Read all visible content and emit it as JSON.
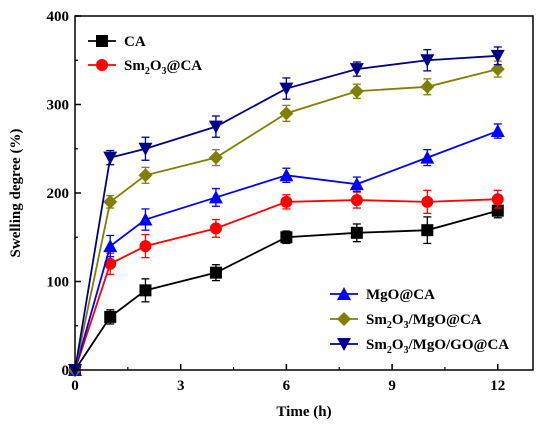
{
  "chart_data": {
    "type": "line",
    "xlabel": "Time (h)",
    "ylabel": "Swelling degree (%)",
    "xlim": [
      0,
      13
    ],
    "ylim": [
      0,
      400
    ],
    "xticks": [
      0,
      3,
      6,
      9,
      12
    ],
    "yticks": [
      0,
      100,
      200,
      300,
      400
    ],
    "grid": false,
    "series": [
      {
        "name": "CA",
        "color": "#000000",
        "marker": "square",
        "x": [
          0,
          1,
          2,
          4,
          6,
          8,
          10,
          12
        ],
        "y": [
          0,
          60,
          90,
          110,
          150,
          155,
          158,
          180
        ],
        "err": [
          0,
          8,
          13,
          9,
          7,
          10,
          15,
          8
        ]
      },
      {
        "name": "Sm2O3@CA",
        "color": "#ff0000",
        "marker": "circle",
        "x": [
          0,
          1,
          2,
          4,
          6,
          8,
          10,
          12
        ],
        "y": [
          0,
          120,
          140,
          160,
          190,
          192,
          190,
          193
        ],
        "err": [
          0,
          12,
          13,
          10,
          8,
          9,
          13,
          10
        ]
      },
      {
        "name": "MgO@CA",
        "color": "#0000ff",
        "marker": "triangle-up",
        "x": [
          0,
          1,
          2,
          4,
          6,
          8,
          10,
          12
        ],
        "y": [
          0,
          140,
          170,
          195,
          220,
          210,
          240,
          270
        ],
        "err": [
          0,
          12,
          12,
          10,
          8,
          8,
          9,
          8
        ]
      },
      {
        "name": "Sm2O3/MgO@CA",
        "color": "#808000",
        "marker": "diamond",
        "x": [
          0,
          1,
          2,
          4,
          6,
          8,
          10,
          12
        ],
        "y": [
          0,
          190,
          220,
          240,
          290,
          315,
          320,
          340
        ],
        "err": [
          0,
          7,
          9,
          9,
          9,
          8,
          9,
          9
        ]
      },
      {
        "name": "Sm2O3/MgO/GO@CA",
        "color": "#00008b",
        "marker": "triangle-down",
        "x": [
          0,
          1,
          2,
          4,
          6,
          8,
          10,
          12
        ],
        "y": [
          0,
          240,
          250,
          275,
          318,
          340,
          350,
          355
        ],
        "err": [
          0,
          8,
          13,
          12,
          12,
          8,
          12,
          10
        ]
      }
    ]
  },
  "legend_upper": [
    {
      "series": 0,
      "parts": [
        [
          "CA",
          false
        ]
      ]
    },
    {
      "series": 1,
      "parts": [
        [
          "Sm",
          false
        ],
        [
          "2",
          true
        ],
        [
          "O",
          false
        ],
        [
          "3",
          true
        ],
        [
          "@CA",
          false
        ]
      ]
    }
  ],
  "legend_lower": [
    {
      "series": 2,
      "parts": [
        [
          "MgO@CA",
          false
        ]
      ]
    },
    {
      "series": 3,
      "parts": [
        [
          "Sm",
          false
        ],
        [
          "2",
          true
        ],
        [
          "O",
          false
        ],
        [
          "3",
          true
        ],
        [
          "/MgO@CA",
          false
        ]
      ]
    },
    {
      "series": 4,
      "parts": [
        [
          "Sm",
          false
        ],
        [
          "2",
          true
        ],
        [
          "O",
          false
        ],
        [
          "3",
          true
        ],
        [
          "/MgO/GO@CA",
          false
        ]
      ]
    }
  ]
}
